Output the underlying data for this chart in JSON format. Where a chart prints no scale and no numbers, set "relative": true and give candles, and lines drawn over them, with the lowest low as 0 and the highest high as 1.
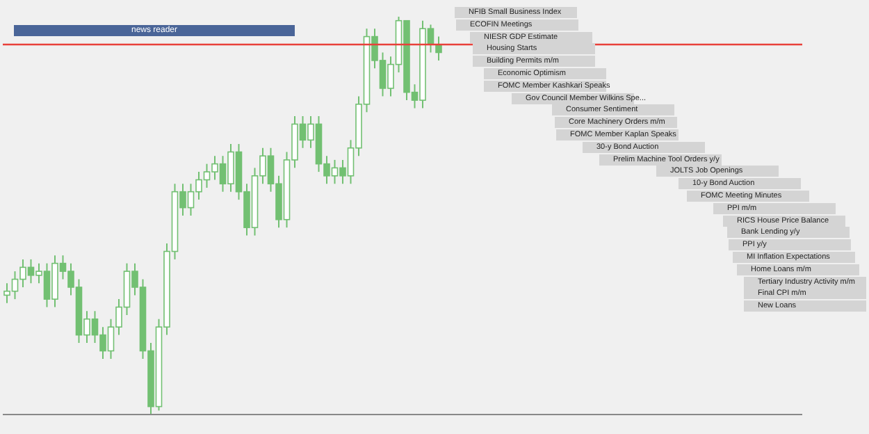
{
  "chart_data": {
    "type": "candlestick",
    "relative": true,
    "color": "#72c072",
    "categories": [
      null,
      null,
      null,
      null,
      null,
      null,
      null,
      null,
      null,
      null,
      null,
      null,
      null,
      null,
      null,
      null,
      null,
      null,
      null,
      null,
      null,
      null,
      null,
      null,
      null,
      null,
      null,
      null,
      null,
      null,
      null,
      null,
      null,
      null,
      null,
      null,
      null,
      null,
      null,
      null,
      null,
      null,
      null,
      null,
      null,
      null,
      null,
      null,
      null,
      null,
      null,
      null,
      null,
      null,
      null,
      null,
      null,
      null,
      null,
      null,
      null,
      null,
      null,
      null,
      null,
      null,
      null,
      null,
      null,
      null,
      null,
      null,
      null,
      null,
      null,
      null,
      null,
      null,
      null,
      null,
      null,
      null,
      null,
      null,
      null,
      null,
      null,
      null,
      null,
      null,
      null,
      null,
      null,
      null,
      null,
      null,
      null,
      null,
      null,
      null
    ],
    "ohlc": [
      [
        0.3,
        0.33,
        0.28,
        0.31
      ],
      [
        0.31,
        0.36,
        0.29,
        0.34
      ],
      [
        0.34,
        0.39,
        0.32,
        0.37
      ],
      [
        0.37,
        0.39,
        0.33,
        0.35
      ],
      [
        0.35,
        0.38,
        0.33,
        0.36
      ],
      [
        0.36,
        0.38,
        0.27,
        0.29
      ],
      [
        0.29,
        0.4,
        0.27,
        0.38
      ],
      [
        0.38,
        0.4,
        0.34,
        0.36
      ],
      [
        0.36,
        0.38,
        0.3,
        0.32
      ],
      [
        0.32,
        0.34,
        0.18,
        0.2
      ],
      [
        0.2,
        0.26,
        0.18,
        0.24
      ],
      [
        0.24,
        0.26,
        0.18,
        0.2
      ],
      [
        0.2,
        0.22,
        0.14,
        0.16
      ],
      [
        0.16,
        0.24,
        0.14,
        0.22
      ],
      [
        0.22,
        0.29,
        0.2,
        0.27
      ],
      [
        0.27,
        0.38,
        0.25,
        0.36
      ],
      [
        0.36,
        0.38,
        0.3,
        0.32
      ],
      [
        0.32,
        0.34,
        0.14,
        0.16
      ],
      [
        0.16,
        0.18,
        0,
        0.02
      ],
      [
        0.02,
        0.24,
        0.01,
        0.22
      ],
      [
        0.22,
        0.43,
        0.2,
        0.41
      ],
      [
        0.41,
        0.58,
        0.39,
        0.56
      ],
      [
        0.56,
        0.58,
        0.5,
        0.52
      ],
      [
        0.52,
        0.58,
        0.5,
        0.56
      ],
      [
        0.56,
        0.61,
        0.54,
        0.59
      ],
      [
        0.59,
        0.63,
        0.57,
        0.61
      ],
      [
        0.61,
        0.65,
        0.59,
        0.63
      ],
      [
        0.63,
        0.65,
        0.56,
        0.58
      ],
      [
        0.58,
        0.68,
        0.56,
        0.66
      ],
      [
        0.66,
        0.68,
        0.54,
        0.56
      ],
      [
        0.56,
        0.58,
        0.45,
        0.47
      ],
      [
        0.47,
        0.62,
        0.45,
        0.6
      ],
      [
        0.6,
        0.67,
        0.58,
        0.65
      ],
      [
        0.65,
        0.67,
        0.56,
        0.58
      ],
      [
        0.58,
        0.6,
        0.47,
        0.49
      ],
      [
        0.49,
        0.66,
        0.47,
        0.64
      ],
      [
        0.64,
        0.75,
        0.62,
        0.73
      ],
      [
        0.73,
        0.75,
        0.67,
        0.69
      ],
      [
        0.69,
        0.75,
        0.67,
        0.73
      ],
      [
        0.73,
        0.75,
        0.61,
        0.63
      ],
      [
        0.63,
        0.65,
        0.58,
        0.6
      ],
      [
        0.6,
        0.64,
        0.58,
        0.62
      ],
      [
        0.62,
        0.64,
        0.58,
        0.6
      ],
      [
        0.6,
        0.69,
        0.58,
        0.67
      ],
      [
        0.67,
        0.8,
        0.65,
        0.78
      ],
      [
        0.78,
        0.97,
        0.76,
        0.95
      ],
      [
        0.95,
        0.97,
        0.87,
        0.89
      ],
      [
        0.89,
        0.91,
        0.8,
        0.82
      ],
      [
        0.82,
        0.9,
        0.8,
        0.88
      ],
      [
        0.88,
        1,
        0.86,
        0.99
      ],
      [
        0.99,
        0.99,
        0.79,
        0.81
      ],
      [
        0.81,
        0.83,
        0.77,
        0.79
      ],
      [
        0.79,
        0.99,
        0.77,
        0.97
      ],
      [
        0.97,
        0.98,
        0.91,
        0.93
      ],
      [
        0.93,
        0.95,
        0.89,
        0.91
      ],
      null,
      null,
      null,
      null,
      null,
      null,
      null,
      null,
      null,
      null,
      null,
      null,
      null,
      null,
      null,
      null,
      null,
      null,
      null,
      null,
      null,
      null,
      null,
      null,
      null,
      null,
      null,
      null,
      null,
      null,
      null,
      null,
      null,
      null,
      null,
      null,
      null,
      null,
      null,
      null,
      null,
      null,
      null,
      null,
      null
    ],
    "ref_lines": [
      {
        "axis": "y",
        "value": 0.93,
        "color": "#e8403a"
      }
    ],
    "annotations": [
      "news reader",
      "NFIB Small Business Index",
      "ECOFIN Meetings",
      "NIESR GDP Estimate",
      "Housing Starts",
      "Building Permits m/m",
      "Economic Optimism",
      "FOMC Member Kashkari Speaks",
      "Gov Council Member Wilkins Spe...",
      "Consumer Sentiment",
      "Core Machinery Orders m/m",
      "FOMC Member Kaplan Speaks",
      "30-y Bond Auction",
      "Prelim Machine Tool Orders y/y",
      "JOLTS Job Openings",
      "10-y Bond Auction",
      "FOMC Meeting Minutes",
      "PPI m/m",
      "RICS House Price Balance",
      "Bank Lending y/y",
      "PPI y/y",
      "MI Inflation Expectations",
      "Home Loans m/m",
      "Tertiary Industry Activity m/m",
      "Final CPI m/m",
      "New Loans"
    ]
  }
}
